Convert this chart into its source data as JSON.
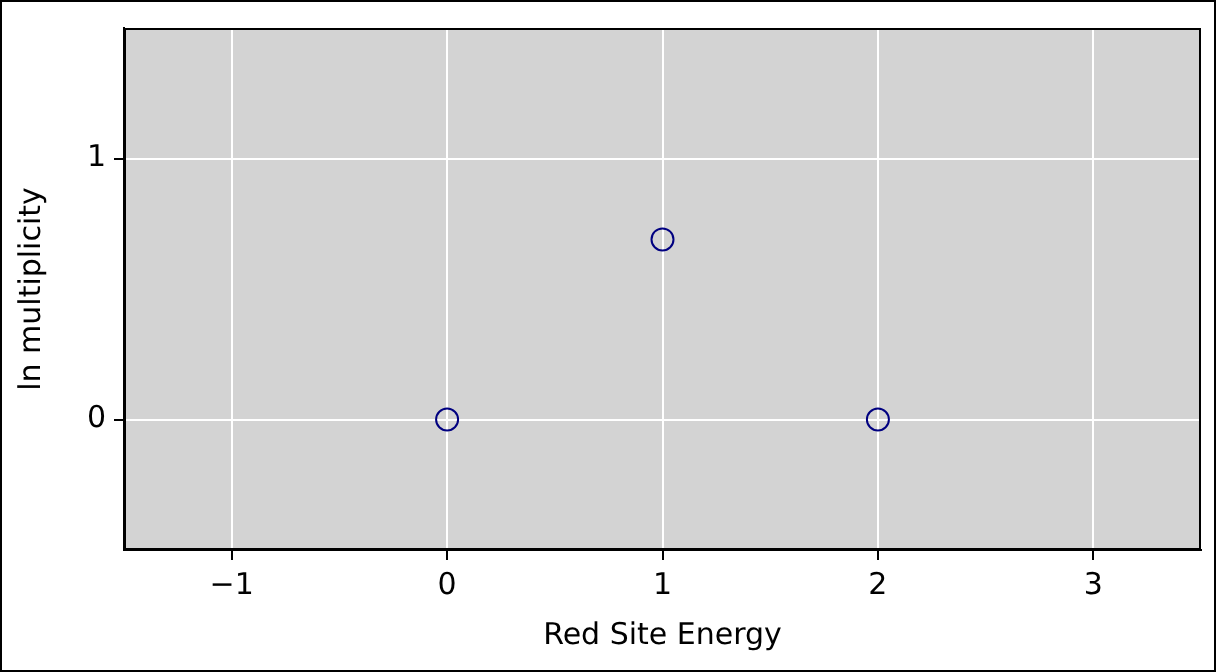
{
  "chart_data": {
    "type": "scatter",
    "xlabel": "Red Site Energy",
    "ylabel": "ln multiplicity",
    "x": [
      0,
      1,
      2
    ],
    "values": [
      0,
      0.69,
      0
    ],
    "color": "#000080",
    "marker": "circle",
    "xlim": [
      -1.5,
      3.5
    ],
    "ylim": [
      -0.5,
      1.5
    ],
    "xticks": [
      {
        "value": -1,
        "label": "−1"
      },
      0,
      1,
      2,
      3
    ],
    "yticks": [
      0,
      1
    ],
    "grid": true,
    "legend": false
  }
}
